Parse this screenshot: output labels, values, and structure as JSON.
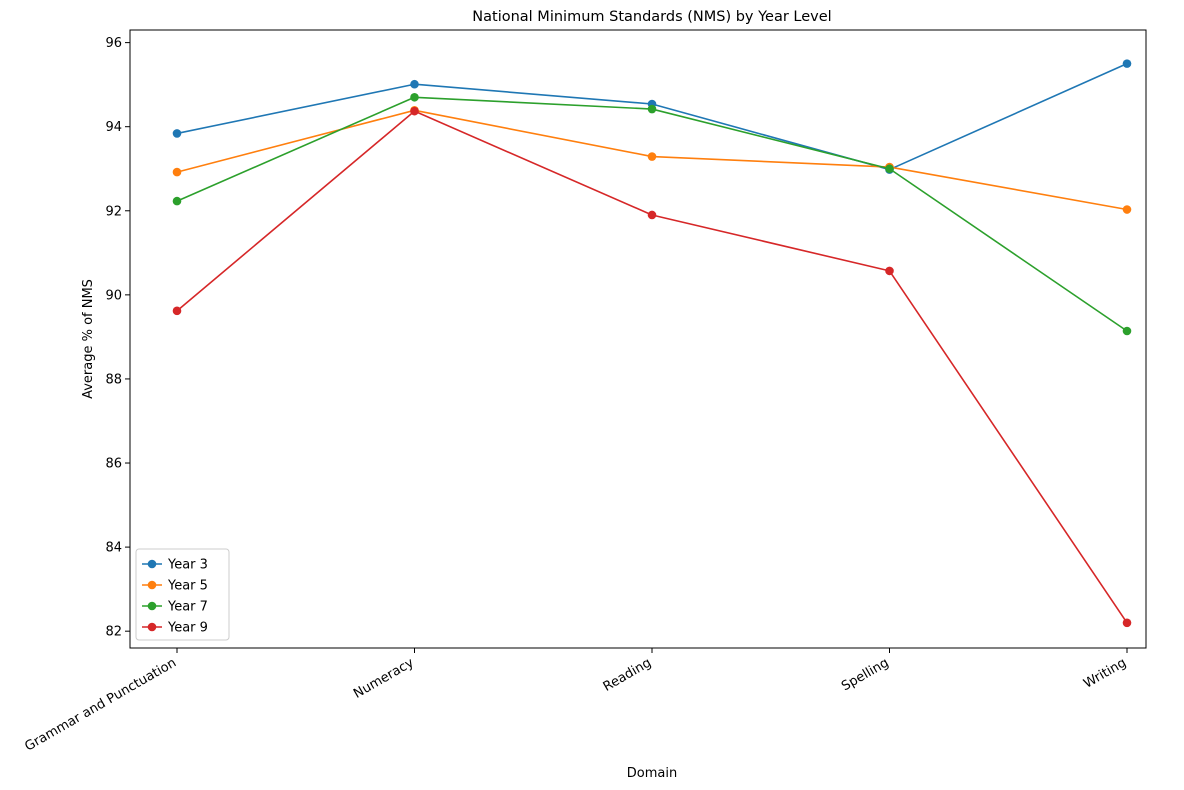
{
  "chart_data": {
    "type": "line",
    "title": "National Minimum Standards (NMS) by Year Level",
    "xlabel": "Domain",
    "ylabel": "Average % of NMS",
    "categories": [
      "Grammar and Punctuation",
      "Numeracy",
      "Reading",
      "Spelling",
      "Writing"
    ],
    "ylim": [
      81.6,
      96.3
    ],
    "yticks": [
      "82",
      "84",
      "86",
      "88",
      "90",
      "92",
      "94",
      "96"
    ],
    "grid": false,
    "legend_position": "lower-left",
    "series": [
      {
        "name": "Year 3",
        "color": "#1f77b4",
        "values": [
          93.84,
          95.01,
          94.54,
          92.98,
          95.5
        ]
      },
      {
        "name": "Year 5",
        "color": "#ff7f0e",
        "values": [
          92.92,
          94.39,
          93.29,
          93.04,
          92.03
        ]
      },
      {
        "name": "Year 7",
        "color": "#2ca02c",
        "values": [
          92.23,
          94.7,
          94.42,
          93.0,
          89.14
        ]
      },
      {
        "name": "Year 9",
        "color": "#d62728",
        "values": [
          89.62,
          94.37,
          91.9,
          90.57,
          82.2
        ]
      }
    ]
  }
}
